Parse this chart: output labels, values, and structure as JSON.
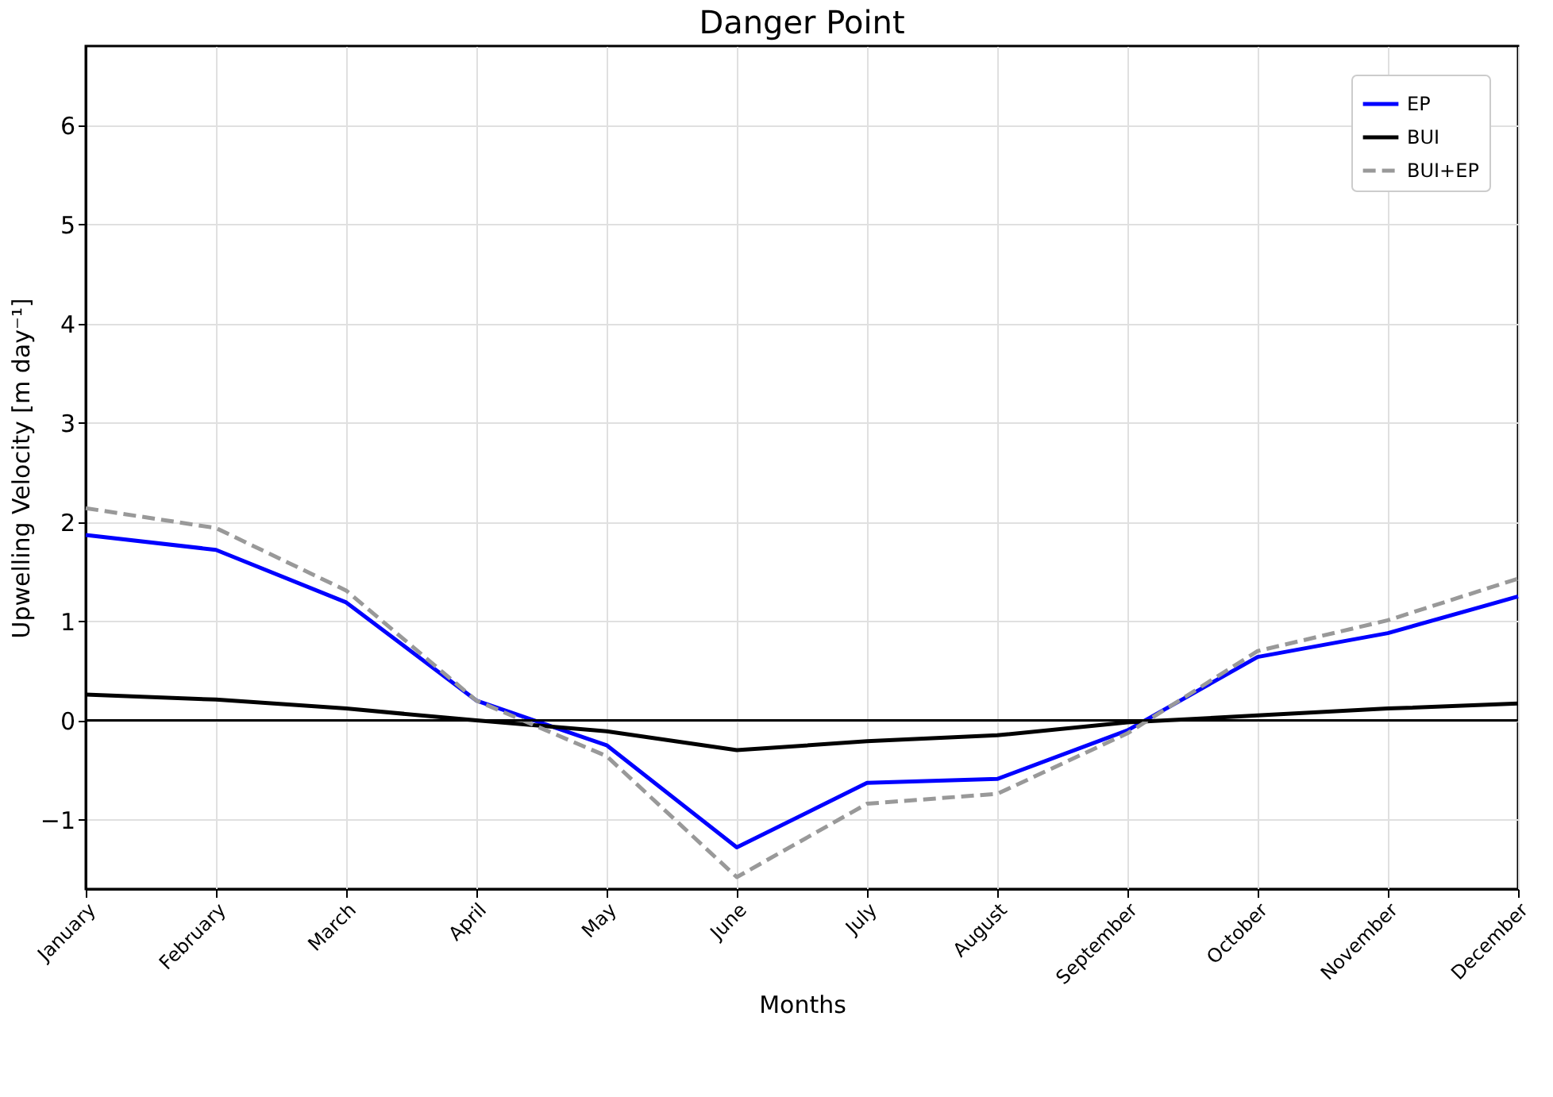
{
  "chart_data": {
    "type": "line",
    "title": "Danger Point",
    "xlabel": "Months",
    "ylabel": "Upwelling Velocity [m day⁻¹]",
    "categories": [
      "January",
      "February",
      "March",
      "April",
      "May",
      "June",
      "July",
      "August",
      "September",
      "October",
      "November",
      "December"
    ],
    "series": [
      {
        "name": "EP",
        "color": "#0000ff",
        "line_style": "solid",
        "values": [
          1.87,
          1.72,
          1.19,
          0.2,
          -0.25,
          -1.28,
          -0.63,
          -0.59,
          -0.1,
          0.64,
          0.88,
          1.25
        ]
      },
      {
        "name": "BUI",
        "color": "#000000",
        "line_style": "solid",
        "values": [
          0.26,
          0.21,
          0.12,
          0.0,
          -0.11,
          -0.3,
          -0.21,
          -0.15,
          -0.02,
          0.05,
          0.12,
          0.17
        ]
      },
      {
        "name": "BUI+EP",
        "color": "#999999",
        "line_style": "dashed",
        "values": [
          2.14,
          1.94,
          1.31,
          0.2,
          -0.36,
          -1.58,
          -0.84,
          -0.74,
          -0.13,
          0.7,
          1.01,
          1.43
        ]
      }
    ],
    "ylim": [
      -1.7,
      6.8
    ],
    "yticks": [
      -1,
      0,
      1,
      2,
      3,
      4,
      5,
      6
    ],
    "grid": true,
    "legend": "top right",
    "marker": "none",
    "ref_lines": [
      {
        "axis": "y",
        "value": 0,
        "color": "#000000"
      }
    ]
  }
}
